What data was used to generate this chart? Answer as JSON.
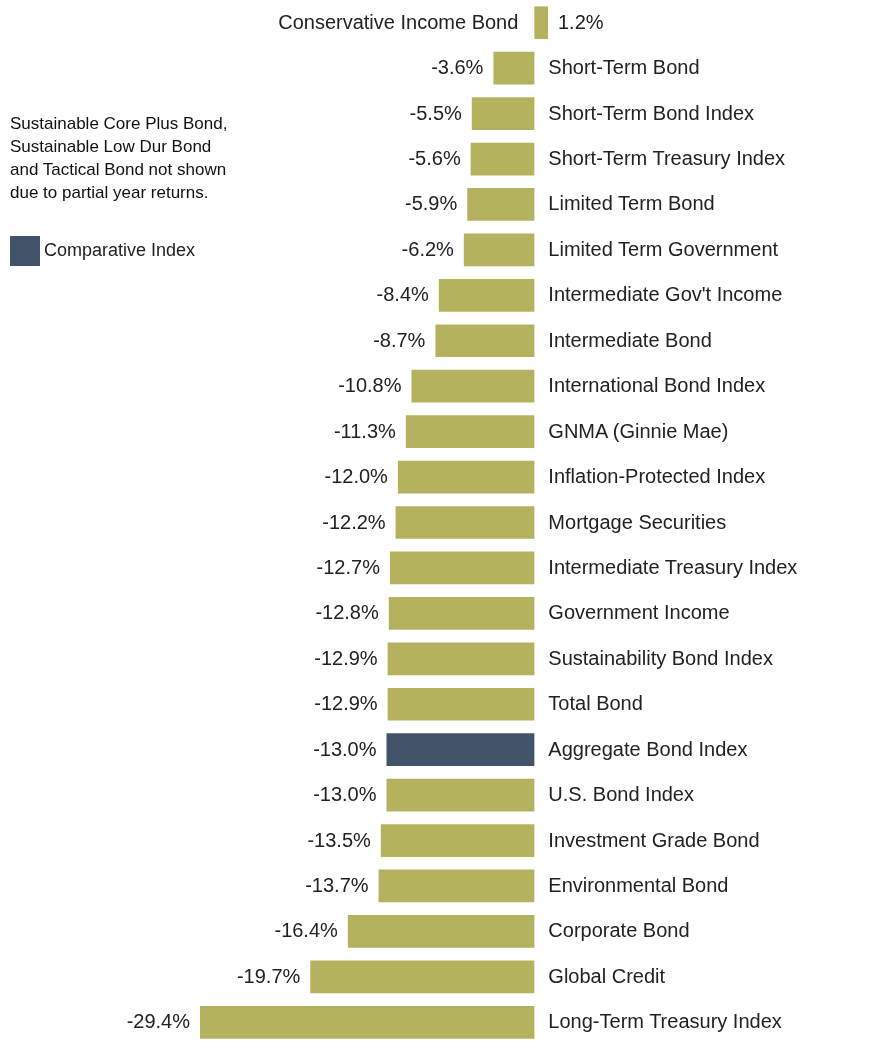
{
  "chart_data": {
    "type": "bar",
    "orientation": "horizontal",
    "legend": "top left",
    "categories": [
      "Conservative Income Bond",
      "Short-Term Bond",
      "Short-Term Bond Index",
      "Short-Term Treasury Index",
      "Limited Term Bond",
      "Limited Term Government",
      "Intermediate Gov't Income",
      "Intermediate Bond",
      "International Bond Index",
      "GNMA (Ginnie Mae)",
      "Inflation-Protected Index",
      "Mortgage Securities",
      "Intermediate Treasury Index",
      "Government Income",
      "Sustainability Bond Index",
      "Total Bond",
      "Aggregate Bond Index",
      "U.S. Bond Index",
      "Investment Grade Bond",
      "Environmental Bond",
      "Corporate Bond",
      "Global Credit",
      "Long-Term Treasury Index"
    ],
    "series": [
      {
        "color": "#b5b25f",
        "values": [
          1.2,
          -3.6,
          -5.5,
          -5.6,
          -5.9,
          -6.2,
          -8.4,
          -8.7,
          -10.8,
          -11.3,
          -12.0,
          -12.2,
          -12.7,
          -12.8,
          -12.9,
          -12.9,
          null,
          -13.0,
          -13.5,
          -13.7,
          -16.4,
          -19.7,
          -29.4
        ],
        "value_labels": [
          "1.2%",
          "-3.6%",
          "-5.5%",
          "-5.6%",
          "-5.9%",
          "-6.2%",
          "-8.4%",
          "-8.7%",
          "-10.8%",
          "-11.3%",
          "-12.0%",
          "-12.2%",
          "-12.7%",
          "-12.8%",
          "-12.9%",
          "-12.9%",
          null,
          "-13.0%",
          "-13.5%",
          "-13.7%",
          "-16.4%",
          "-19.7%",
          "-29.4%"
        ]
      },
      {
        "name": "Comparative Index",
        "color": "#435369",
        "values": [
          null,
          null,
          null,
          null,
          null,
          null,
          null,
          null,
          null,
          null,
          null,
          null,
          null,
          null,
          null,
          null,
          -13.0,
          null,
          null,
          null,
          null,
          null,
          null
        ],
        "value_labels": [
          null,
          null,
          null,
          null,
          null,
          null,
          null,
          null,
          null,
          null,
          null,
          null,
          null,
          null,
          null,
          null,
          "-13.0%",
          null,
          null,
          null,
          null,
          null,
          null
        ]
      }
    ],
    "annotations": [
      "Sustainable Core Plus Bond,\nSustainable Low Dur Bond\nand Tactical Bond not shown\ndue to partial year returns."
    ]
  }
}
